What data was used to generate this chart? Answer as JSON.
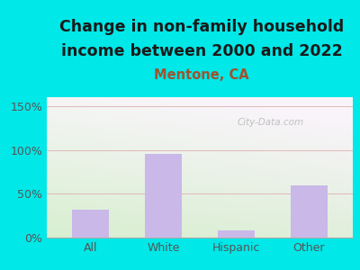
{
  "categories": [
    "All",
    "White",
    "Hispanic",
    "Other"
  ],
  "values": [
    32,
    95,
    8,
    60
  ],
  "bar_color": "#c9b8e8",
  "title_line1": "Change in non-family household",
  "title_line2": "income between 2000 and 2022",
  "subtitle": "Mentone, CA",
  "ylim": [
    0,
    160
  ],
  "yticks": [
    0,
    50,
    100,
    150
  ],
  "ytick_labels": [
    "0%",
    "50%",
    "100%",
    "150%"
  ],
  "outer_bg": "#00e8e8",
  "title_color": "#1a1a1a",
  "subtitle_color": "#a0522d",
  "tick_color": "#555555",
  "watermark": "City-Data.com",
  "grid_color": "#e0b8b8",
  "title_fontsize": 12.5,
  "subtitle_fontsize": 10.5
}
